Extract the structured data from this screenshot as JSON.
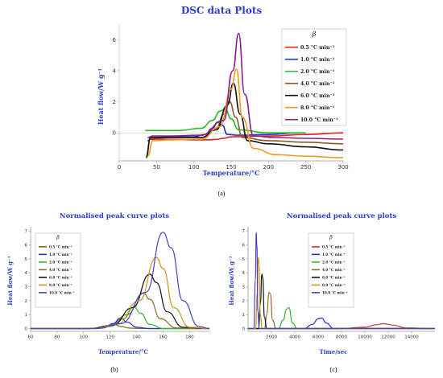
{
  "chart_data": [
    {
      "id": "a",
      "type": "line",
      "title": "DSC data Plots",
      "xlabel": "Temperature/°C",
      "ylabel": "Heat flow/W g⁻¹",
      "xlim": [
        0,
        300
      ],
      "ylim": [
        -1.8,
        7
      ],
      "xticks": [
        0,
        50,
        100,
        150,
        200,
        250,
        300
      ],
      "yticks": [
        0,
        2,
        4,
        6
      ],
      "legend_title": "β",
      "legend_position": "top-right",
      "grid": false,
      "series": [
        {
          "name": "0.5 °C min⁻¹",
          "color": "#e0231f",
          "x": [
            42,
            50,
            70,
            100,
            120,
            130,
            140,
            150,
            200,
            250,
            300
          ],
          "y": [
            -0.42,
            -0.4,
            -0.42,
            -0.45,
            -0.45,
            -0.42,
            -0.35,
            -0.25,
            -0.2,
            -0.1,
            0.0
          ]
        },
        {
          "name": "1.0 °C min⁻¹",
          "color": "#1f35c9",
          "x": [
            38,
            45,
            70,
            100,
            115,
            125,
            132,
            138,
            145,
            160,
            200,
            240
          ],
          "y": [
            -0.5,
            -0.3,
            -0.25,
            -0.25,
            -0.1,
            0.3,
            0.7,
            0.5,
            -0.1,
            -0.15,
            -0.1,
            0.0
          ]
        },
        {
          "name": "2.0 °C min⁻¹",
          "color": "#2db82d",
          "x": [
            35,
            50,
            80,
            110,
            125,
            135,
            142,
            150,
            160,
            200,
            250
          ],
          "y": [
            0.15,
            0.15,
            0.15,
            0.3,
            0.8,
            1.4,
            1.55,
            0.9,
            0.2,
            0.0,
            0.0
          ]
        },
        {
          "name": "4.0 °C min⁻¹",
          "color": "#8b5a2b",
          "x": [
            36,
            42,
            70,
            110,
            130,
            140,
            148,
            156,
            165,
            200,
            250,
            300
          ],
          "y": [
            -1.5,
            -0.35,
            -0.3,
            -0.3,
            0.3,
            1.2,
            2.0,
            1.0,
            -0.3,
            -0.5,
            -0.6,
            -0.7
          ]
        },
        {
          "name": "6.0 °C min⁻¹",
          "color": "#111111",
          "x": [
            36,
            42,
            70,
            110,
            130,
            145,
            153,
            162,
            172,
            200,
            250,
            300
          ],
          "y": [
            -1.6,
            -0.3,
            -0.3,
            -0.3,
            0.2,
            1.8,
            3.2,
            1.2,
            -0.5,
            -0.7,
            -0.9,
            -1.1
          ]
        },
        {
          "name": "8.0 °C min⁻¹",
          "color": "#f39a1e",
          "x": [
            38,
            45,
            70,
            110,
            135,
            150,
            157,
            165,
            180,
            210,
            250,
            300
          ],
          "y": [
            -1.5,
            -0.5,
            -0.45,
            -0.4,
            0.4,
            2.8,
            4.1,
            1.0,
            -1.0,
            -1.4,
            -1.5,
            -1.6
          ]
        },
        {
          "name": "10.0 °C min⁻¹",
          "color": "#8a1f8a",
          "x": [
            38,
            45,
            70,
            110,
            140,
            152,
            160,
            168,
            180,
            210,
            250,
            300
          ],
          "y": [
            -0.3,
            -0.2,
            -0.2,
            -0.15,
            0.8,
            4.0,
            6.4,
            2.5,
            -0.2,
            -0.3,
            -0.35,
            -0.4
          ]
        }
      ]
    },
    {
      "id": "b",
      "type": "line",
      "title": "Normalised peak curve plots",
      "xlabel": "Temperature/°C",
      "ylabel": "Heat flow/W g⁻¹",
      "xlim": [
        60,
        195
      ],
      "ylim": [
        -0.2,
        7.3
      ],
      "xticks": [
        60,
        80,
        100,
        120,
        140,
        160,
        180
      ],
      "yticks": [
        0,
        1,
        2,
        3,
        4,
        5,
        6,
        7
      ],
      "legend_title": "β",
      "legend_position": "top-left",
      "grid": false,
      "series": [
        {
          "name": "0.5 °C min⁻¹",
          "color": "#6b6b1a",
          "x": [
            60,
            100,
            110,
            118,
            123,
            128,
            135,
            145,
            195
          ],
          "y": [
            0,
            0,
            0.02,
            0.15,
            0.3,
            0.15,
            0.03,
            0,
            0
          ]
        },
        {
          "name": "1.0 °C min⁻¹",
          "color": "#1f35c9",
          "x": [
            60,
            100,
            115,
            122,
            128,
            133,
            140,
            150,
            195
          ],
          "y": [
            0,
            0,
            0.05,
            0.35,
            0.75,
            0.45,
            0.1,
            0,
            0
          ]
        },
        {
          "name": "2.0 °C min⁻¹",
          "color": "#2db82d",
          "x": [
            60,
            105,
            120,
            130,
            138,
            143,
            150,
            160,
            195
          ],
          "y": [
            0,
            0,
            0.15,
            0.7,
            1.55,
            1.1,
            0.3,
            0,
            0
          ]
        },
        {
          "name": "4.0 °C min⁻¹",
          "color": "#8b6a2b",
          "x": [
            60,
            105,
            120,
            133,
            145,
            150,
            158,
            170,
            195
          ],
          "y": [
            0,
            0,
            0.2,
            1.0,
            2.55,
            2.1,
            0.7,
            0.05,
            0
          ]
        },
        {
          "name": "6.0 °C min⁻¹",
          "color": "#111111",
          "x": [
            60,
            105,
            122,
            137,
            150,
            155,
            163,
            175,
            195
          ],
          "y": [
            0,
            0,
            0.25,
            1.5,
            3.9,
            3.3,
            1.2,
            0.1,
            0
          ]
        },
        {
          "name": "8.0 °C min⁻¹",
          "color": "#c79a1e",
          "x": [
            60,
            108,
            125,
            142,
            155,
            160,
            168,
            180,
            195
          ],
          "y": [
            0,
            0,
            0.3,
            2.0,
            5.1,
            4.3,
            1.5,
            0.1,
            0
          ]
        },
        {
          "name": "10.0 °C min⁻¹",
          "color": "#4b3fd1",
          "x": [
            60,
            110,
            128,
            147,
            160,
            166,
            175,
            187,
            195
          ],
          "y": [
            0,
            0,
            0.35,
            2.6,
            6.9,
            5.8,
            2.0,
            0.15,
            0
          ]
        }
      ]
    },
    {
      "id": "c",
      "type": "line",
      "title": "Normalised peak curve plots",
      "xlabel": "Time/sec",
      "ylabel": "Heat flow/W g⁻¹",
      "xlim": [
        0,
        16000
      ],
      "ylim": [
        -0.2,
        7.3
      ],
      "xticks": [
        2000,
        4000,
        6000,
        8000,
        10000,
        12000,
        14000
      ],
      "yticks": [
        0,
        1,
        2,
        3,
        4,
        5,
        6,
        7
      ],
      "legend_title": "β",
      "legend_position": "top-right",
      "grid": false,
      "series": [
        {
          "name": "0.5 °C min⁻¹",
          "color": "#c0392b",
          "x": [
            0,
            8000,
            10000,
            11000,
            11600,
            12400,
            13500,
            16000
          ],
          "y": [
            0,
            0,
            0.1,
            0.28,
            0.35,
            0.25,
            0.05,
            0
          ]
        },
        {
          "name": "1.0 °C min⁻¹",
          "color": "#1f35c9",
          "x": [
            0,
            4800,
            5500,
            6000,
            6300,
            6700,
            7300,
            16000
          ],
          "y": [
            0,
            0,
            0.3,
            0.7,
            0.75,
            0.4,
            0.02,
            0
          ]
        },
        {
          "name": "2.0 °C min⁻¹",
          "color": "#2db82d",
          "x": [
            0,
            2600,
            3000,
            3300,
            3500,
            3800,
            4200,
            16000
          ],
          "y": [
            0,
            0,
            0.6,
            1.4,
            1.5,
            0.4,
            0,
            0
          ]
        },
        {
          "name": "4.0 °C min⁻¹",
          "color": "#8b6a2b",
          "x": [
            0,
            1400,
            1600,
            1800,
            1900,
            2100,
            2400,
            16000
          ],
          "y": [
            0,
            0,
            1.0,
            2.6,
            2.5,
            0.6,
            0,
            0
          ]
        },
        {
          "name": "6.0 °C min⁻¹",
          "color": "#111111",
          "x": [
            0,
            900,
            1050,
            1180,
            1250,
            1400,
            1600,
            16000
          ],
          "y": [
            0,
            0,
            1.8,
            3.9,
            3.7,
            0.8,
            0,
            0
          ]
        },
        {
          "name": "8.0 °C min⁻¹",
          "color": "#c79a1e",
          "x": [
            0,
            650,
            780,
            880,
            940,
            1050,
            1200,
            16000
          ],
          "y": [
            0,
            0,
            2.5,
            5.1,
            4.6,
            1.0,
            0,
            0
          ]
        },
        {
          "name": "10.0 °C min⁻¹",
          "color": "#4b3fd1",
          "x": [
            0,
            500,
            620,
            700,
            750,
            840,
            950,
            16000
          ],
          "y": [
            0,
            0,
            3.5,
            6.9,
            6.0,
            1.2,
            0,
            0
          ]
        }
      ]
    }
  ],
  "sub_labels": [
    "(a)",
    "(b)",
    "(c)"
  ]
}
